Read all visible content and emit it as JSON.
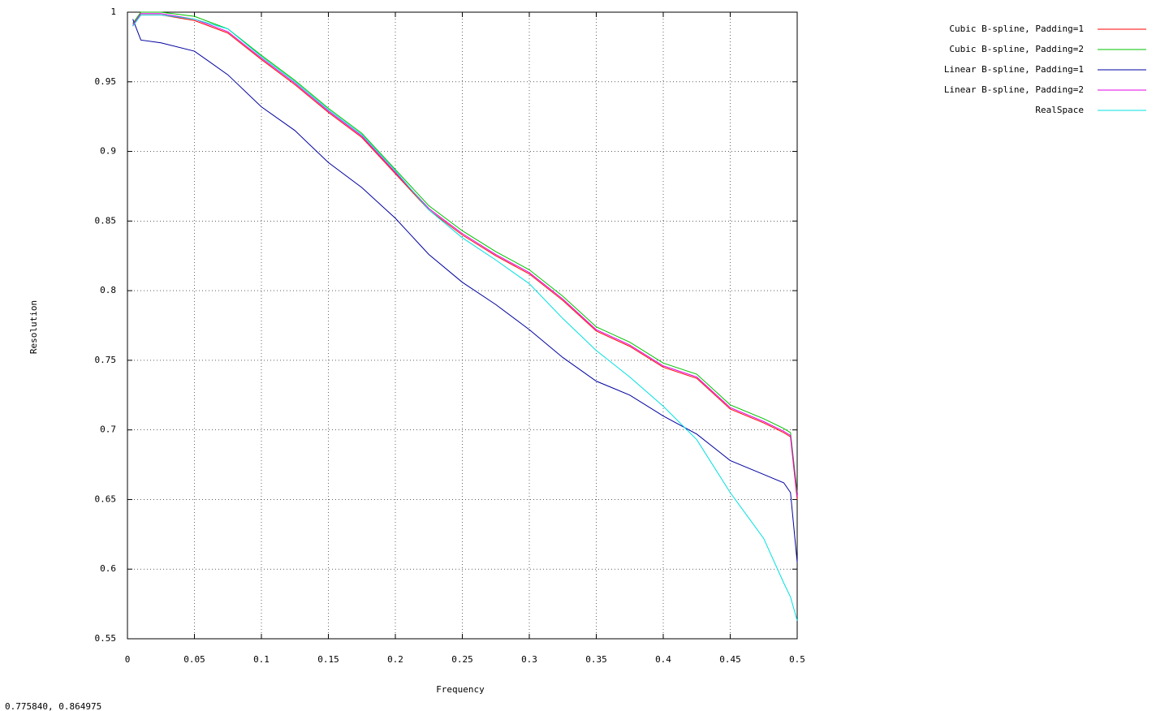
{
  "chart_data": {
    "type": "line",
    "x_label": "Frequency",
    "y_label": "Resolution",
    "status": "0.775840,  0.864975",
    "x": [
      0.004,
      0.01,
      0.025,
      0.05,
      0.075,
      0.1,
      0.125,
      0.15,
      0.175,
      0.2,
      0.225,
      0.25,
      0.275,
      0.3,
      0.325,
      0.35,
      0.375,
      0.4,
      0.425,
      0.45,
      0.475,
      0.49,
      0.495,
      0.5
    ],
    "series": [
      {
        "name": "Cubic B-spline, Padding=1",
        "color": "#ff0000",
        "values": [
          0.99,
          0.998,
          0.998,
          0.994,
          0.985,
          0.966,
          0.948,
          0.928,
          0.91,
          0.884,
          0.858,
          0.84,
          0.825,
          0.812,
          0.793,
          0.771,
          0.76,
          0.745,
          0.737,
          0.715,
          0.705,
          0.698,
          0.695,
          0.65
        ]
      },
      {
        "name": "Cubic B-spline, Padding=2",
        "color": "#00c000",
        "values": [
          0.992,
          1.0,
          1.0,
          0.997,
          0.988,
          0.969,
          0.951,
          0.931,
          0.913,
          0.887,
          0.861,
          0.843,
          0.828,
          0.815,
          0.796,
          0.774,
          0.763,
          0.748,
          0.74,
          0.718,
          0.708,
          0.701,
          0.698,
          0.655
        ]
      },
      {
        "name": "Linear B-spline, Padding=1",
        "color": "#0000a0",
        "values": [
          0.995,
          0.98,
          0.978,
          0.972,
          0.955,
          0.932,
          0.915,
          0.892,
          0.874,
          0.852,
          0.826,
          0.806,
          0.79,
          0.772,
          0.752,
          0.735,
          0.725,
          0.71,
          0.697,
          0.678,
          0.668,
          0.662,
          0.655,
          0.605
        ]
      },
      {
        "name": "Linear B-spline, Padding=2",
        "color": "#e000e0",
        "values": [
          0.991,
          0.999,
          0.999,
          0.995,
          0.986,
          0.967,
          0.949,
          0.929,
          0.911,
          0.885,
          0.859,
          0.841,
          0.826,
          0.813,
          0.794,
          0.772,
          0.761,
          0.746,
          0.738,
          0.716,
          0.706,
          0.699,
          0.696,
          0.652
        ]
      },
      {
        "name": "RealSpace",
        "color": "#00e0e0",
        "values": [
          0.99,
          0.998,
          0.998,
          0.995,
          0.988,
          0.968,
          0.95,
          0.93,
          0.912,
          0.886,
          0.858,
          0.838,
          0.822,
          0.805,
          0.78,
          0.757,
          0.738,
          0.717,
          0.693,
          0.655,
          0.622,
          0.59,
          0.58,
          0.563
        ]
      }
    ],
    "xlim": [
      0,
      0.5
    ],
    "ylim": [
      0.55,
      1
    ],
    "xticks": [
      0,
      0.05,
      0.1,
      0.15,
      0.2,
      0.25,
      0.3,
      0.35,
      0.4,
      0.45,
      0.5
    ],
    "yticks": [
      0.55,
      0.6,
      0.65,
      0.7,
      0.75,
      0.8,
      0.85,
      0.9,
      0.95,
      1
    ],
    "grid": true,
    "legend": "top-right"
  }
}
